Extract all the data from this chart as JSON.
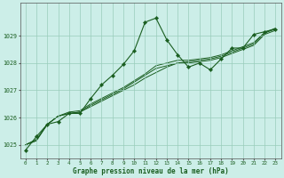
{
  "bg_color": "#cceee8",
  "plot_bg_color": "#cceee8",
  "grid_color": "#99ccbb",
  "line_color": "#1a5e20",
  "marker_color": "#1a5e20",
  "title": "Graphe pression niveau de la mer (hPa)",
  "title_color": "#1a5e20",
  "xlim": [
    -0.5,
    23.5
  ],
  "ylim": [
    1024.5,
    1030.2
  ],
  "yticks": [
    1025,
    1026,
    1027,
    1028,
    1029
  ],
  "xticks": [
    0,
    1,
    2,
    3,
    4,
    5,
    6,
    7,
    8,
    9,
    10,
    11,
    12,
    13,
    14,
    15,
    16,
    17,
    18,
    19,
    20,
    21,
    22,
    23
  ],
  "series_main": [
    1024.8,
    1025.3,
    1025.75,
    1025.85,
    1026.15,
    1026.15,
    1026.7,
    1027.2,
    1027.55,
    1027.95,
    1028.45,
    1029.5,
    1029.65,
    1028.85,
    1028.3,
    1027.85,
    1028.0,
    1027.75,
    1028.15,
    1028.55,
    1028.55,
    1029.05,
    1029.15,
    1029.25
  ],
  "series_trend1": [
    1025.0,
    1025.15,
    1025.75,
    1026.05,
    1026.15,
    1026.2,
    1026.4,
    1026.6,
    1026.8,
    1027.0,
    1027.2,
    1027.45,
    1027.65,
    1027.85,
    1028.0,
    1028.0,
    1028.05,
    1028.1,
    1028.2,
    1028.35,
    1028.5,
    1028.65,
    1029.05,
    1029.2
  ],
  "series_trend2": [
    1025.0,
    1025.15,
    1025.75,
    1026.05,
    1026.15,
    1026.2,
    1026.45,
    1026.65,
    1026.85,
    1027.05,
    1027.3,
    1027.55,
    1027.8,
    1027.9,
    1028.0,
    1028.05,
    1028.1,
    1028.15,
    1028.25,
    1028.4,
    1028.55,
    1028.7,
    1029.1,
    1029.25
  ],
  "series_trend3": [
    1025.0,
    1025.2,
    1025.75,
    1026.05,
    1026.2,
    1026.25,
    1026.5,
    1026.7,
    1026.9,
    1027.1,
    1027.35,
    1027.6,
    1027.9,
    1028.0,
    1028.1,
    1028.1,
    1028.15,
    1028.2,
    1028.3,
    1028.45,
    1028.6,
    1028.75,
    1029.12,
    1029.28
  ]
}
